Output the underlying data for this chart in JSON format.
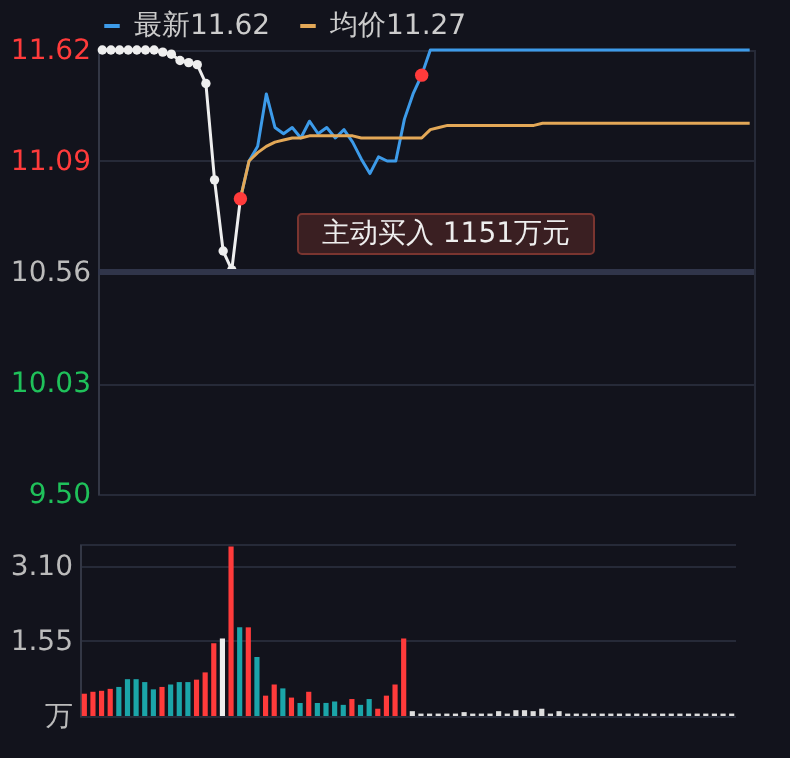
{
  "chart_data": [
    {
      "type": "line",
      "categories": [
        null,
        null,
        null,
        null,
        null,
        null,
        null,
        null,
        null,
        null,
        null,
        null,
        null,
        null,
        null,
        null,
        null,
        null,
        null,
        null,
        null,
        null,
        null,
        null,
        null,
        null,
        null,
        null,
        null,
        null,
        null,
        null,
        null,
        null,
        null,
        null,
        null,
        null,
        null,
        null,
        null,
        null,
        null,
        null,
        null,
        null,
        null,
        null,
        null,
        null,
        null,
        null,
        null,
        null,
        null,
        null,
        null,
        null,
        null,
        null,
        null,
        null,
        null,
        null,
        null,
        null,
        null,
        null,
        null,
        null,
        null,
        null,
        null,
        null,
        null,
        null
      ],
      "series": [
        {
          "color": "#eeeeee",
          "marker": "circle",
          "values": [
            11.62,
            11.62,
            11.62,
            11.62,
            11.62,
            11.62,
            11.62,
            11.61,
            11.6,
            11.57,
            11.56,
            11.55,
            11.46,
            11.0,
            10.66,
            10.57,
            10.91,
            null,
            null,
            null,
            null,
            null,
            null,
            null,
            null,
            null,
            null,
            null,
            null,
            null,
            null,
            null,
            null,
            null,
            null,
            null,
            null,
            null,
            null,
            null,
            null,
            null,
            null,
            null,
            null,
            null,
            null,
            null,
            null,
            null,
            null,
            null,
            null,
            null,
            null,
            null,
            null,
            null,
            null,
            null,
            null,
            null,
            null,
            null,
            null,
            null,
            null,
            null,
            null,
            null,
            null,
            null,
            null,
            null,
            null,
            null
          ]
        },
        {
          "name": "最新11.62",
          "color": "#3d9be9",
          "values": [
            null,
            null,
            null,
            null,
            null,
            null,
            null,
            null,
            null,
            null,
            null,
            null,
            null,
            null,
            null,
            null,
            10.91,
            11.09,
            11.16,
            11.41,
            11.25,
            11.22,
            11.25,
            11.2,
            11.28,
            11.22,
            11.25,
            11.2,
            11.24,
            11.18,
            11.1,
            11.03,
            11.11,
            11.09,
            11.09,
            11.29,
            11.41,
            11.5,
            11.62,
            11.62,
            11.62,
            11.62,
            11.62,
            11.62,
            11.62,
            11.62,
            11.62,
            11.62,
            11.62,
            11.62,
            11.62,
            11.62,
            11.62,
            11.62,
            11.62,
            11.62,
            11.62,
            11.62,
            11.62,
            11.62,
            11.62,
            11.62,
            11.62,
            11.62,
            11.62,
            11.62,
            11.62,
            11.62,
            11.62,
            11.62,
            11.62,
            11.62,
            11.62,
            11.62,
            11.62,
            11.62
          ]
        },
        {
          "name": "均价11.27",
          "color": "#e3a857",
          "values": [
            null,
            null,
            null,
            null,
            null,
            null,
            null,
            null,
            null,
            null,
            null,
            null,
            null,
            null,
            null,
            null,
            10.91,
            11.09,
            11.13,
            11.16,
            11.18,
            11.19,
            11.2,
            11.2,
            11.21,
            11.21,
            11.21,
            11.21,
            11.21,
            11.21,
            11.2,
            11.2,
            11.2,
            11.2,
            11.2,
            11.2,
            11.2,
            11.2,
            11.24,
            11.25,
            11.26,
            11.26,
            11.26,
            11.26,
            11.26,
            11.26,
            11.26,
            11.26,
            11.26,
            11.26,
            11.26,
            11.27,
            11.27,
            11.27,
            11.27,
            11.27,
            11.27,
            11.27,
            11.27,
            11.27,
            11.27,
            11.27,
            11.27,
            11.27,
            11.27,
            11.27,
            11.27,
            11.27,
            11.27,
            11.27,
            11.27,
            11.27,
            11.27,
            11.27,
            11.27,
            11.27
          ]
        },
        {
          "type": "scatter",
          "color": "#ff3b3b",
          "values": [
            null,
            null,
            null,
            null,
            null,
            null,
            null,
            null,
            null,
            null,
            null,
            null,
            null,
            null,
            null,
            null,
            10.91,
            null,
            null,
            null,
            null,
            null,
            null,
            null,
            null,
            null,
            null,
            null,
            null,
            null,
            null,
            null,
            null,
            null,
            null,
            null,
            null,
            11.5,
            null,
            null,
            null,
            null,
            null,
            null,
            null,
            null,
            null,
            null,
            null,
            null,
            null,
            null,
            null,
            null,
            null,
            null,
            null,
            null,
            null,
            null,
            null,
            null,
            null,
            null,
            null,
            null,
            null,
            null,
            null,
            null,
            null,
            null,
            null,
            null,
            null,
            null
          ]
        }
      ],
      "ylim": [
        9.5,
        11.62
      ],
      "yticks": [
        {
          "value": 9.5,
          "label": "9.50"
        },
        {
          "value": 10.03,
          "label": "10.03"
        },
        {
          "value": 10.56,
          "label": "10.56"
        },
        {
          "value": 11.09,
          "label": "11.09"
        },
        {
          "value": 11.62,
          "label": "11.62"
        }
      ],
      "ref_lines": [
        {
          "axis": "y",
          "value": 10.56
        }
      ],
      "annotations": [
        "主动买入 1151万元"
      ],
      "grid": "y",
      "legend": "top left",
      "tick_labels": "y"
    },
    {
      "type": "bar",
      "categories": [
        null,
        null,
        null,
        null,
        null,
        null,
        null,
        null,
        null,
        null,
        null,
        null,
        null,
        null,
        null,
        null,
        null,
        null,
        null,
        null,
        null,
        null,
        null,
        null,
        null,
        null,
        null,
        null,
        null,
        null,
        null,
        null,
        null,
        null,
        null,
        null,
        null,
        null,
        null,
        null,
        null,
        null,
        null,
        null,
        null,
        null,
        null,
        null,
        null,
        null,
        null,
        null,
        null,
        null,
        null,
        null,
        null,
        null,
        null,
        null,
        null,
        null,
        null,
        null,
        null,
        null,
        null,
        null,
        null,
        null,
        null,
        null,
        null,
        null,
        null,
        null
      ],
      "values": [
        0.46,
        0.5,
        0.52,
        0.56,
        0.6,
        0.76,
        0.76,
        0.7,
        0.55,
        0.6,
        0.65,
        0.7,
        0.7,
        0.75,
        0.9,
        1.5,
        1.6,
        3.5,
        1.83,
        1.83,
        1.22,
        0.42,
        0.65,
        0.57,
        0.38,
        0.27,
        0.5,
        0.27,
        0.27,
        0.3,
        0.23,
        0.35,
        0.23,
        0.35,
        0.15,
        0.42,
        0.65,
        1.6,
        0.1,
        0.05,
        0.05,
        0.05,
        0.05,
        0.05,
        0.08,
        0.05,
        0.05,
        0.05,
        0.1,
        0.05,
        0.12,
        0.12,
        0.1,
        0.15,
        0.05,
        0.1,
        0.05,
        0.05,
        0.05,
        0.05,
        0.05,
        0.05,
        0.05,
        0.05,
        0.05,
        0.05,
        0.05,
        0.05,
        0.05,
        0.05,
        0.05,
        0.05,
        0.05,
        0.05,
        0.05,
        0.05
      ],
      "colors": [
        "#ff3b3b",
        "#ff3b3b",
        "#ff3b3b",
        "#ff3b3b",
        "#1ba5a9",
        "#1ba5a9",
        "#1ba5a9",
        "#1ba5a9",
        "#1ba5a9",
        "#ff3b3b",
        "#1ba5a9",
        "#1ba5a9",
        "#1ba5a9",
        "#ff3b3b",
        "#ff3b3b",
        "#ff3b3b",
        "#eeeeee",
        "#ff3b3b",
        "#1ba5a9",
        "#ff3b3b",
        "#1ba5a9",
        "#ff3b3b",
        "#ff3b3b",
        "#1ba5a9",
        "#ff3b3b",
        "#1ba5a9",
        "#ff3b3b",
        "#1ba5a9",
        "#1ba5a9",
        "#1ba5a9",
        "#1ba5a9",
        "#ff3b3b",
        "#1ba5a9",
        "#1ba5a9",
        "#ff3b3b",
        "#ff3b3b",
        "#ff3b3b",
        "#ff3b3b",
        "#dddddd",
        "#dddddd",
        "#dddddd",
        "#dddddd",
        "#dddddd",
        "#dddddd",
        "#dddddd",
        "#dddddd",
        "#dddddd",
        "#dddddd",
        "#dddddd",
        "#dddddd",
        "#dddddd",
        "#dddddd",
        "#dddddd",
        "#dddddd",
        "#dddddd",
        "#dddddd",
        "#dddddd",
        "#dddddd",
        "#dddddd",
        "#dddddd",
        "#dddddd",
        "#dddddd",
        "#dddddd",
        "#dddddd",
        "#dddddd",
        "#dddddd",
        "#dddddd",
        "#dddddd",
        "#dddddd",
        "#dddddd",
        "#dddddd",
        "#dddddd",
        "#dddddd",
        "#dddddd",
        "#dddddd",
        "#dddddd"
      ],
      "ylim": [
        0,
        3.55
      ],
      "yticks": [
        {
          "value": 0,
          "label": "万"
        },
        {
          "value": 1.55,
          "label": "1.55"
        },
        {
          "value": 3.1,
          "label": "3.10"
        }
      ],
      "grid": "y",
      "tick_labels": "y"
    }
  ]
}
